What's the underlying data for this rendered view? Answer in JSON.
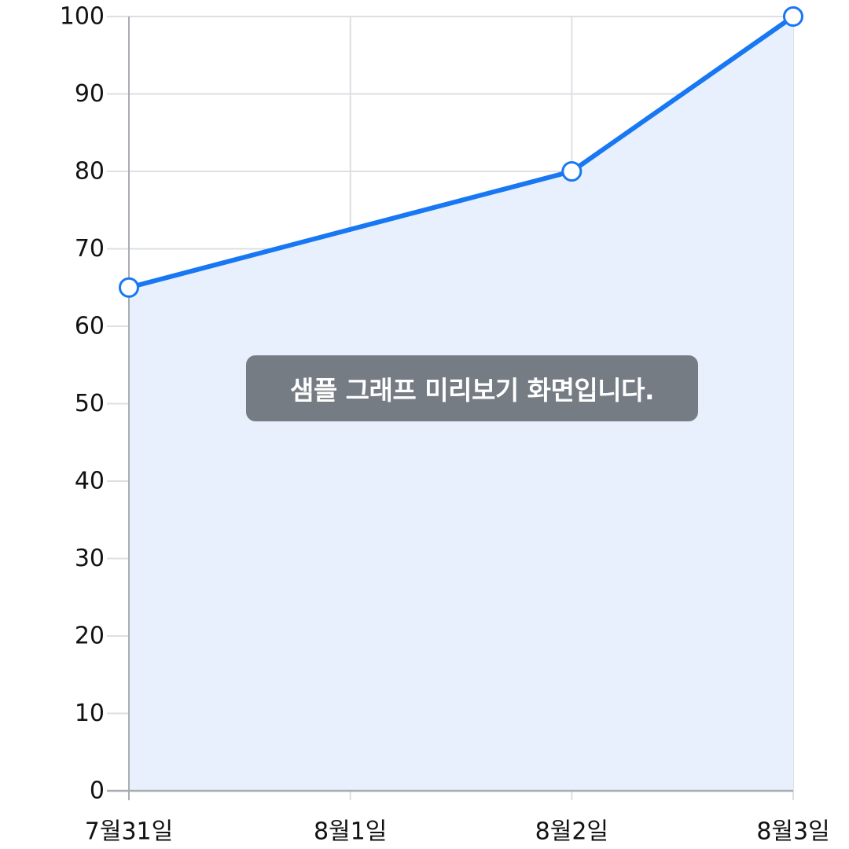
{
  "chart_data": {
    "type": "area",
    "x": [
      "7월31일",
      "8월1일",
      "8월2일",
      "8월3일"
    ],
    "points": [
      {
        "x": "7월31일",
        "y": 65
      },
      {
        "x": "8월2일",
        "y": 80
      },
      {
        "x": "8월3일",
        "y": 100
      }
    ],
    "y_ticks": [
      0,
      10,
      20,
      30,
      40,
      50,
      60,
      70,
      80,
      90,
      100
    ],
    "ylim": [
      0,
      100
    ],
    "grid": true,
    "colors": {
      "line": "#1877F2",
      "fill": "#E7F0FC",
      "grid": "#DDDFE3",
      "axis": "#A9ADB3",
      "marker_fill": "#FFFFFF"
    }
  },
  "overlay": {
    "message": "샘플 그래프 미리보기 화면입니다."
  }
}
